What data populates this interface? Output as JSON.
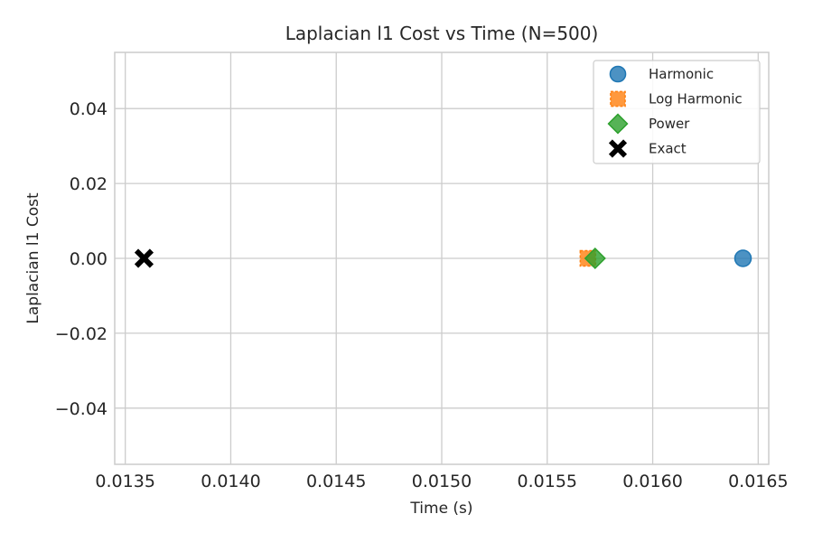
{
  "chart_data": {
    "type": "scatter",
    "title": "Laplacian l1 Cost vs Time (N=500)",
    "xlabel": "Time (s)",
    "ylabel": "Laplacian l1 Cost",
    "xlim": [
      0.01345,
      0.01655
    ],
    "ylim": [
      -0.055,
      0.055
    ],
    "xticks": [
      0.0135,
      0.014,
      0.0145,
      0.015,
      0.0155,
      0.016,
      0.0165
    ],
    "xtick_labels": [
      "0.0135",
      "0.0140",
      "0.0145",
      "0.0150",
      "0.0155",
      "0.0160",
      "0.0165"
    ],
    "yticks": [
      0.04,
      0.02,
      0.0,
      -0.02,
      -0.04
    ],
    "ytick_labels": [
      "0.04",
      "0.02",
      "0.00",
      "−0.02",
      "−0.04"
    ],
    "grid": true,
    "legend_position": "top-right",
    "series": [
      {
        "name": "Harmonic",
        "marker": "circle",
        "color": "#1f77b4",
        "x": [
          0.016428
        ],
        "y": [
          0.0
        ]
      },
      {
        "name": "Log Harmonic",
        "marker": "square",
        "color": "#ff7f0e",
        "x": [
          0.015693
        ],
        "y": [
          0.0
        ]
      },
      {
        "name": "Power",
        "marker": "diamond",
        "color": "#2ca02c",
        "x": [
          0.015727
        ],
        "y": [
          0.0
        ]
      },
      {
        "name": "Exact",
        "marker": "x-cross",
        "color": "#000000",
        "x": [
          0.013589
        ],
        "y": [
          0.0
        ]
      }
    ]
  }
}
